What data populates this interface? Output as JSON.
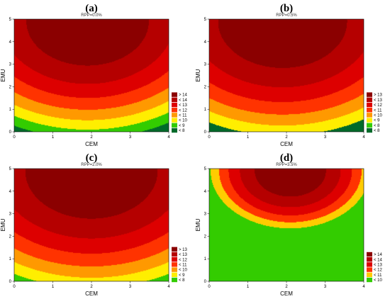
{
  "chart_data": [
    {
      "type": "heatmap",
      "letter": "(a)",
      "title": "RPP=0.0%",
      "xlabel": "CEM",
      "ylabel": "EMU",
      "xlim": [
        0,
        4
      ],
      "ylim": [
        0,
        5
      ],
      "xticks": [
        "0",
        "1",
        "2",
        "3",
        "4"
      ],
      "yticks": [
        "0",
        "1",
        "2",
        "3",
        "4",
        "5"
      ],
      "peak": {
        "x": 1.9,
        "y": 4.9,
        "value": 15.0
      },
      "minimum": {
        "x": 4.0,
        "y": 0.0,
        "value": 7.0
      },
      "legend_position": "lower-right",
      "legend": [
        {
          "label": "> 14",
          "color": "#8b0000"
        },
        {
          "label": "< 14",
          "color": "#b50000"
        },
        {
          "label": "< 13",
          "color": "#dd0000"
        },
        {
          "label": "< 12",
          "color": "#ff3300"
        },
        {
          "label": "< 11",
          "color": "#ff9900"
        },
        {
          "label": "< 10",
          "color": "#ffee00"
        },
        {
          "label": "< 9",
          "color": "#33cc00"
        },
        {
          "label": "< 8",
          "color": "#006a2a"
        }
      ]
    },
    {
      "type": "heatmap",
      "letter": "(b)",
      "title": "RPP=0.5%",
      "xlabel": "CEM",
      "ylabel": "EMU",
      "xlim": [
        0,
        4
      ],
      "ylim": [
        0,
        5
      ],
      "xticks": [
        "0",
        "1",
        "2",
        "3",
        "4"
      ],
      "yticks": [
        "0",
        "1",
        "2",
        "3",
        "4",
        "5"
      ],
      "peak": {
        "x": 1.9,
        "y": 4.9,
        "value": 14.0
      },
      "minimum": {
        "x": 4.0,
        "y": 0.0,
        "value": 6.8
      },
      "legend_position": "lower-right",
      "legend": [
        {
          "label": "> 13",
          "color": "#8b0000"
        },
        {
          "label": "< 13",
          "color": "#b50000"
        },
        {
          "label": "< 12",
          "color": "#dd0000"
        },
        {
          "label": "< 11",
          "color": "#ff3300"
        },
        {
          "label": "< 10",
          "color": "#ff9900"
        },
        {
          "label": "< 9",
          "color": "#ffee00"
        },
        {
          "label": "< 8",
          "color": "#33cc00"
        },
        {
          "label": "< 8",
          "color": "#006a2a"
        }
      ]
    },
    {
      "type": "heatmap",
      "letter": "(c)",
      "title": "RPP=2.0%",
      "xlabel": "CEM",
      "ylabel": "EMU",
      "xlim": [
        0,
        4
      ],
      "ylim": [
        0,
        5
      ],
      "xticks": [
        "0",
        "1",
        "2",
        "3",
        "4"
      ],
      "yticks": [
        "0",
        "1",
        "2",
        "3",
        "4",
        "5"
      ],
      "peak": {
        "x": 2.0,
        "y": 4.9,
        "value": 14.0
      },
      "minimum": {
        "x": 4.0,
        "y": 0.0,
        "value": 7.3
      },
      "legend_position": "lower-right",
      "legend": [
        {
          "label": "> 13",
          "color": "#8b0000"
        },
        {
          "label": "< 13",
          "color": "#b50000"
        },
        {
          "label": "< 12",
          "color": "#dd0000"
        },
        {
          "label": "< 11",
          "color": "#ff3300"
        },
        {
          "label": "< 10",
          "color": "#ff9900"
        },
        {
          "label": "< 9",
          "color": "#ffee00"
        },
        {
          "label": "< 8",
          "color": "#33cc00"
        }
      ]
    },
    {
      "type": "heatmap",
      "letter": "(d)",
      "title": "RPP=3.5%",
      "xlabel": "CEM",
      "ylabel": "EMU",
      "xlim": [
        0,
        4
      ],
      "ylim": [
        0,
        5
      ],
      "xticks": [
        "0",
        "1",
        "2",
        "3",
        "4"
      ],
      "yticks": [
        "0",
        "1",
        "2",
        "3",
        "4",
        "5"
      ],
      "peak": {
        "x": 2.1,
        "y": 4.9,
        "value": 15.0
      },
      "minimum": {
        "x": 0.0,
        "y": 5.0,
        "value": 9.8
      },
      "legend_position": "lower-right",
      "legend": [
        {
          "label": "> 14",
          "color": "#8b0000"
        },
        {
          "label": "< 14",
          "color": "#b50000"
        },
        {
          "label": "< 13",
          "color": "#dd0000"
        },
        {
          "label": "< 12",
          "color": "#ff3300"
        },
        {
          "label": "< 11",
          "color": "#ffcc00"
        },
        {
          "label": "< 10",
          "color": "#33cc00"
        }
      ]
    }
  ]
}
